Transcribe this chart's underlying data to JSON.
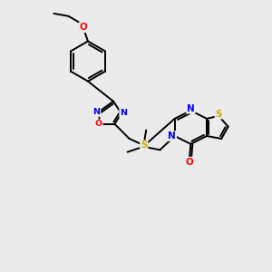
{
  "bg_color": "#ebebeb",
  "bond_color": "#000000",
  "bond_width": 1.4,
  "atom_colors": {
    "N": "#0000ff",
    "O": "#ff0000",
    "S": "#ccaa00",
    "C": "#000000"
  },
  "figsize": [
    3.0,
    3.0
  ],
  "dpi": 100,
  "xlim": [
    0,
    10
  ],
  "ylim": [
    0,
    10
  ]
}
